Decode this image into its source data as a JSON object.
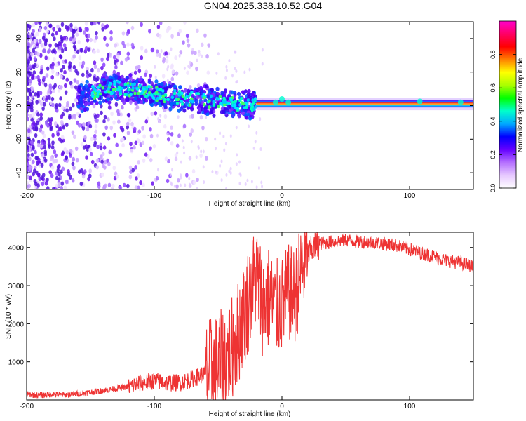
{
  "title": "GN04.2025.338.10.52.G04",
  "chart_data": [
    {
      "type": "heatmap",
      "xlabel": "Height of straight line (km)",
      "ylabel": "Frequency (Hz)",
      "xlim": [
        -200,
        150
      ],
      "ylim": [
        -50,
        50
      ],
      "xticks": [
        -200,
        -100,
        0,
        100
      ],
      "yticks": [
        -40,
        -20,
        0,
        20,
        40
      ],
      "colorbar": {
        "label": "Normalized spectral amplitude",
        "range": [
          0,
          1
        ],
        "ticks": [
          0.0,
          0.2,
          0.4,
          0.6,
          0.8
        ],
        "tick_labels": [
          "0.0",
          "0.2",
          "0.4",
          "0.6",
          "0.8"
        ],
        "colors": [
          "#ffffff",
          "#e6c8ff",
          "#b46eff",
          "#6400ff",
          "#0000ff",
          "#00aaff",
          "#00ffcc",
          "#00ff00",
          "#aaff00",
          "#ffff00",
          "#ff8000",
          "#ff0000",
          "#ff0066",
          "#ff00cc"
        ]
      },
      "ridge": {
        "x": [
          -160,
          -150,
          -140,
          -130,
          -120,
          -110,
          -100,
          -90,
          -80,
          -70,
          -60,
          -50,
          -40,
          -30,
          -20,
          -10,
          0,
          10,
          20,
          50,
          100,
          150
        ],
        "y": [
          4,
          7,
          10,
          11,
          10,
          8,
          7,
          6,
          5,
          4,
          3,
          2,
          1,
          0.5,
          1,
          2,
          3,
          1.5,
          1,
          0.8,
          0.8,
          1.5
        ]
      }
    },
    {
      "type": "line",
      "xlabel": "Height of straight line (km)",
      "ylabel": "SNR (10 * v/v)",
      "xlim": [
        -200,
        150
      ],
      "ylim": [
        0,
        4400
      ],
      "xticks": [
        -200,
        -100,
        0,
        100
      ],
      "yticks": [
        1000,
        2000,
        3000,
        4000
      ],
      "series": [
        {
          "name": "SNR",
          "color": "#ee3333",
          "x": [
            -200,
            -190,
            -180,
            -170,
            -160,
            -150,
            -140,
            -130,
            -120,
            -110,
            -100,
            -90,
            -80,
            -70,
            -60,
            -50,
            -40,
            -35,
            -30,
            -25,
            -20,
            -15,
            -10,
            -5,
            0,
            5,
            10,
            15,
            20,
            25,
            30,
            40,
            50,
            60,
            70,
            80,
            90,
            100,
            110,
            120,
            130,
            140,
            150
          ],
          "values": [
            150,
            120,
            150,
            130,
            160,
            200,
            250,
            300,
            350,
            450,
            500,
            450,
            450,
            550,
            700,
            900,
            1300,
            1700,
            2200,
            2800,
            3300,
            2500,
            2700,
            2400,
            2500,
            2800,
            2700,
            3400,
            3800,
            4000,
            4100,
            4150,
            4200,
            4150,
            4150,
            4100,
            4050,
            3950,
            3850,
            3750,
            3650,
            3600,
            3500
          ]
        }
      ]
    }
  ]
}
